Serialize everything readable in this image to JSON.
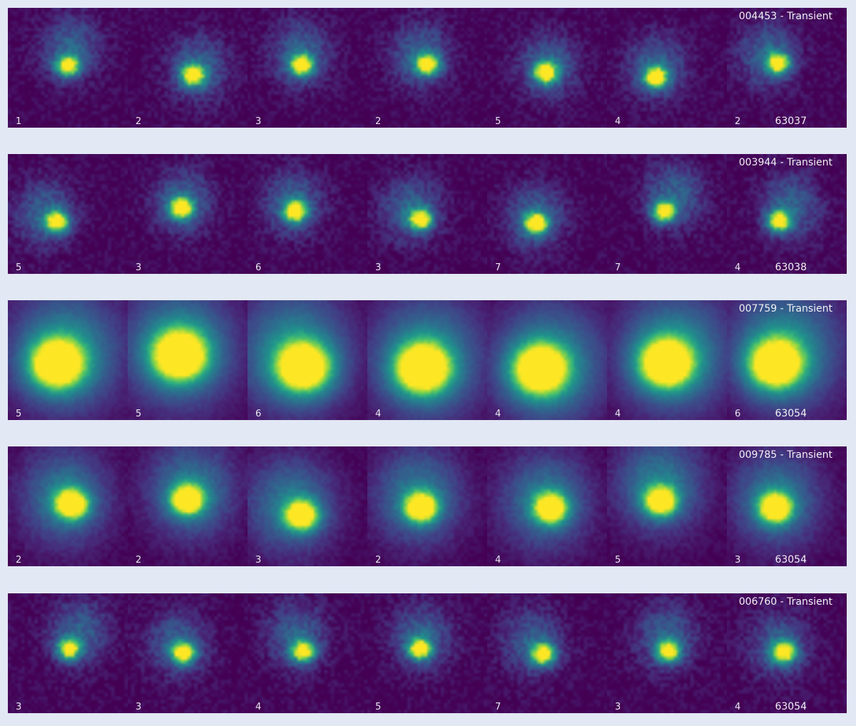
{
  "figure": {
    "colormap": "viridis",
    "background_color": "#e2e8f4",
    "rows": [
      {
        "id": "004453",
        "label": "004453 - Transient",
        "number": "63037",
        "panels": [
          {
            "count": "1",
            "shape": "compact"
          },
          {
            "count": "2",
            "shape": "compact"
          },
          {
            "count": "3",
            "shape": "compact"
          },
          {
            "count": "2",
            "shape": "compact"
          },
          {
            "count": "5",
            "shape": "compact"
          },
          {
            "count": "4",
            "shape": "compact"
          },
          {
            "count": "2",
            "shape": "compact"
          }
        ]
      },
      {
        "id": "003944",
        "label": "003944 - Transient",
        "number": "63038",
        "panels": [
          {
            "count": "5",
            "shape": "compact"
          },
          {
            "count": "3",
            "shape": "compact"
          },
          {
            "count": "6",
            "shape": "compact"
          },
          {
            "count": "3",
            "shape": "compact"
          },
          {
            "count": "7",
            "shape": "compact"
          },
          {
            "count": "7",
            "shape": "compact"
          },
          {
            "count": "4",
            "shape": "compact"
          }
        ]
      },
      {
        "id": "007759",
        "label": "007759 - Transient",
        "number": "63054",
        "panels": [
          {
            "count": "5",
            "shape": "broad"
          },
          {
            "count": "5",
            "shape": "broad"
          },
          {
            "count": "6",
            "shape": "broad"
          },
          {
            "count": "4",
            "shape": "broad"
          },
          {
            "count": "4",
            "shape": "broad"
          },
          {
            "count": "4",
            "shape": "broad"
          },
          {
            "count": "6",
            "shape": "broad"
          }
        ]
      },
      {
        "id": "009785",
        "label": "009785 - Transient",
        "number": "63054",
        "panels": [
          {
            "count": "2",
            "shape": "extended"
          },
          {
            "count": "2",
            "shape": "extended"
          },
          {
            "count": "3",
            "shape": "extended"
          },
          {
            "count": "2",
            "shape": "extended"
          },
          {
            "count": "4",
            "shape": "extended"
          },
          {
            "count": "5",
            "shape": "extended"
          },
          {
            "count": "3",
            "shape": "extended"
          }
        ]
      },
      {
        "id": "006760",
        "label": "006760 - Transient",
        "number": "63054",
        "panels": [
          {
            "count": "3",
            "shape": "compact"
          },
          {
            "count": "3",
            "shape": "compact"
          },
          {
            "count": "4",
            "shape": "compact"
          },
          {
            "count": "5",
            "shape": "compact"
          },
          {
            "count": "7",
            "shape": "compact"
          },
          {
            "count": "3",
            "shape": "compact"
          },
          {
            "count": "4",
            "shape": "compact"
          }
        ]
      }
    ]
  }
}
